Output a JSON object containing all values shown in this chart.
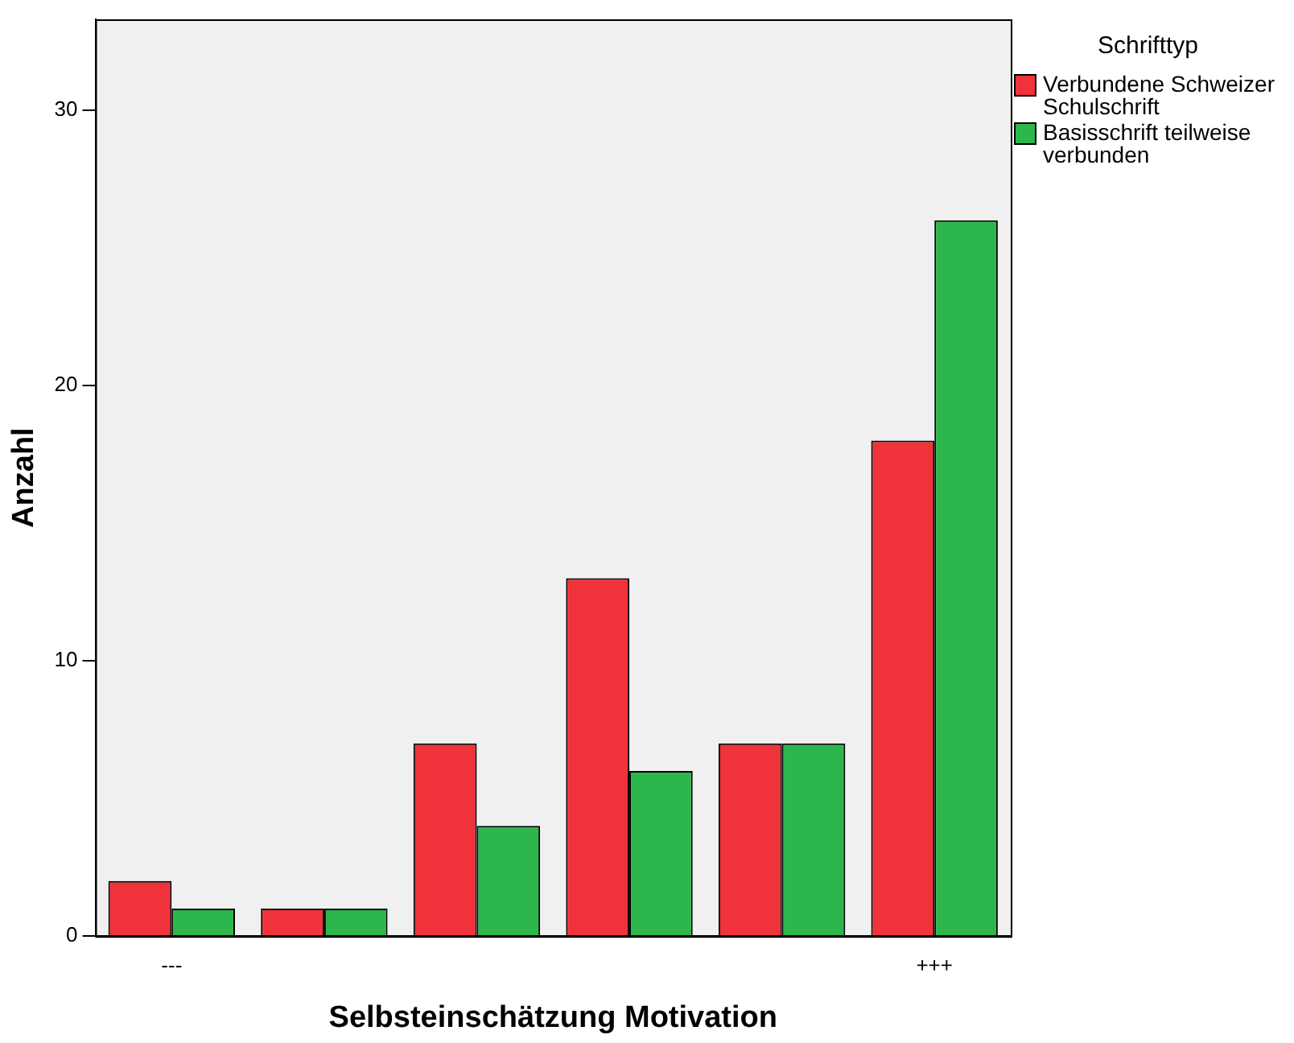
{
  "chart_data": {
    "type": "bar",
    "xlabel": "Selbsteinschätzung Motivation",
    "ylabel": "Anzahl",
    "legend_title": "Schrifttyp",
    "legend": "top right",
    "categories": [
      "---",
      null,
      null,
      null,
      null,
      "+++"
    ],
    "series": [
      {
        "name": "Verbundene Schweizer Schulschrift",
        "color": "#f0323a",
        "values": [
          2,
          1,
          7,
          13,
          7,
          18
        ]
      },
      {
        "name": "Basisschrift teilweise verbunden",
        "color": "#2db64b",
        "values": [
          1,
          1,
          4,
          6,
          7,
          26
        ]
      }
    ],
    "ylim": [
      0,
      33.3
    ],
    "yticks": [
      0,
      10,
      20,
      30
    ],
    "grid": false
  }
}
